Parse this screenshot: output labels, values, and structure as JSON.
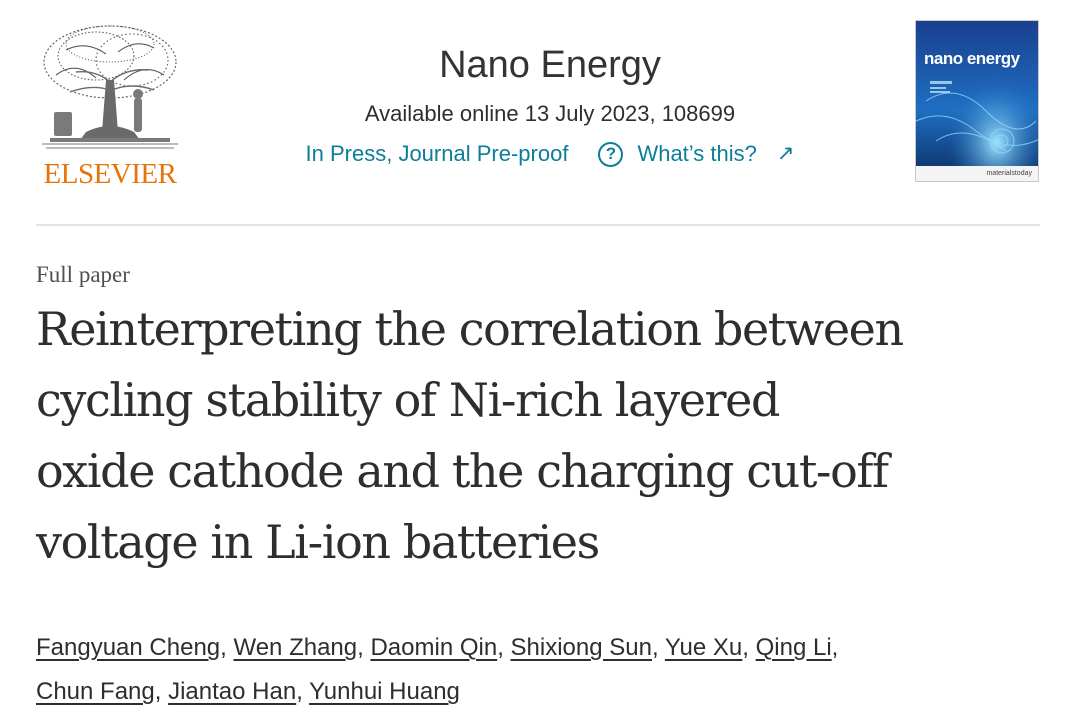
{
  "publisher": {
    "name": "ELSEVIER",
    "logo_icon": "tree-of-knowledge-icon",
    "brand_color": "#e8730b"
  },
  "journal": {
    "title": "Nano Energy",
    "availability": "Available online 13 July 2023, 108699",
    "status_link": "In Press, Journal Pre-proof",
    "help_link": "What’s this?",
    "help_icon": "question-circle-icon",
    "external_icon": "external-arrow-icon",
    "link_color": "#0c7d9a",
    "cover": {
      "title": "nano energy",
      "footer": "materialstoday"
    }
  },
  "article": {
    "type": "Full paper",
    "title_lines": [
      "Reinterpreting the correlation between",
      "cycling stability of Ni-rich layered",
      "oxide cathode and the charging cut-off",
      "voltage in Li-ion batteries"
    ],
    "authors": [
      "Fangyuan Cheng",
      "Wen Zhang",
      "Daomin Qin",
      "Shixiong Sun",
      "Yue Xu",
      "Qing Li",
      "Chun Fang",
      "Jiantao Han",
      "Yunhui Huang"
    ]
  }
}
